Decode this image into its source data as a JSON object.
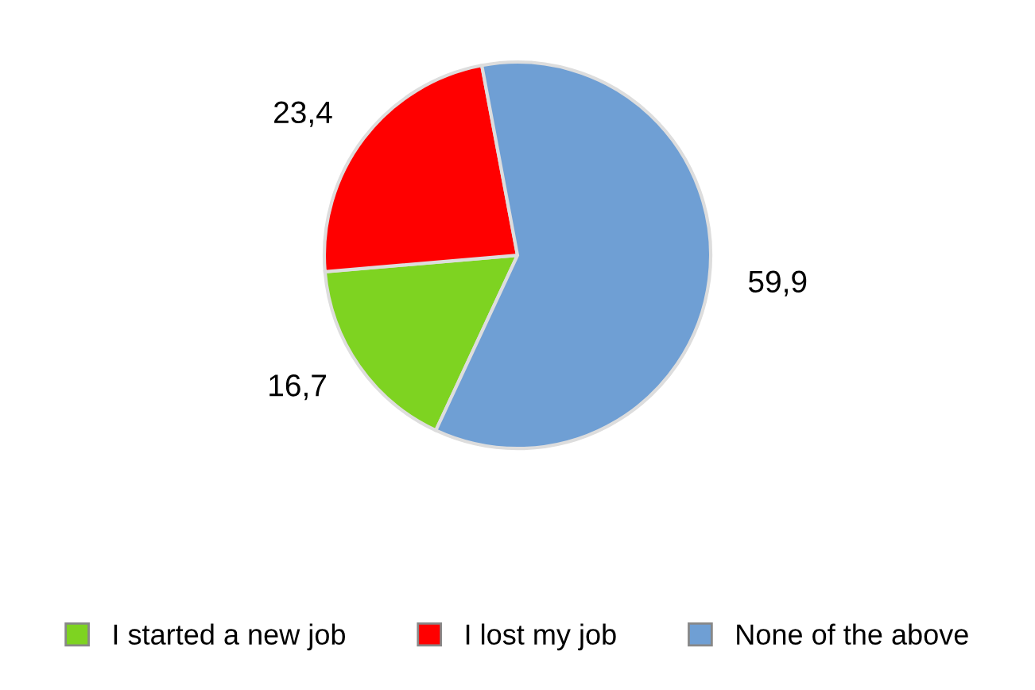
{
  "chart_data": {
    "type": "pie",
    "categories": [
      "I started a new job",
      "I lost my job",
      "None of the above"
    ],
    "values": [
      16.7,
      23.4,
      59.9
    ],
    "value_labels": [
      "16,7",
      "23,4",
      "59,9"
    ],
    "colors": [
      "#7ed321",
      "#ff0000",
      "#6f9fd4"
    ],
    "legend": "bottom"
  }
}
